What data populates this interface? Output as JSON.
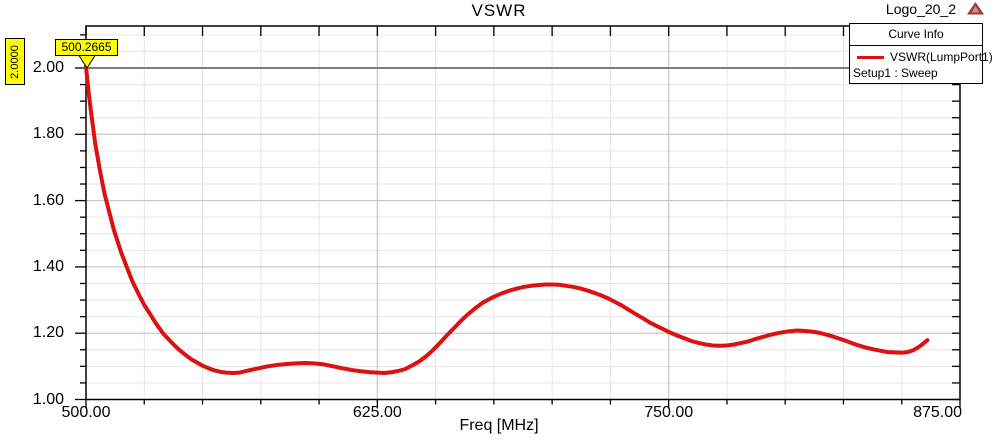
{
  "header": {
    "design_name": "Logo_20_2"
  },
  "colors": {
    "curve": "#dc1111",
    "marker_bg": "#ffff00",
    "grid_minor": "#e6e6e6",
    "grid_major": "#c2c2c2",
    "marker_line": "#7d7d7d",
    "axis": "#000000",
    "logo": "#9e3a3a",
    "logo_inner": "#cf8f8f"
  },
  "chart_data": {
    "type": "line",
    "title": "VSWR",
    "xlabel": "Freq [MHz]",
    "ylabel": "",
    "xlim": [
      500,
      875
    ],
    "ylim": [
      1.0,
      2.127
    ],
    "grid": true,
    "x_minor_step": 25,
    "y_minor_step": 0.05,
    "x_ticks": {
      "values": [
        500,
        625,
        750,
        875
      ],
      "labels": [
        "500.00",
        "625.00",
        "750.00",
        "875.00"
      ]
    },
    "y_ticks": {
      "values": [
        1.0,
        1.2,
        1.4,
        1.6,
        1.8,
        2.0
      ],
      "labels": [
        "1.00",
        "1.20",
        "1.40",
        "1.60",
        "1.80",
        "2.00"
      ]
    },
    "legend": {
      "title": "Curve Info",
      "series_label": "VSWR(LumpPort1)",
      "setup_label": "Setup1 : Sweep",
      "position": "top-right"
    },
    "markers": {
      "y_marker": {
        "label": "2.0000",
        "value": 2.0
      },
      "point_marker": {
        "label": "500.2665",
        "freq": 500.2665,
        "value": 2.0
      }
    },
    "series": [
      {
        "name": "VSWR(LumpPort1)",
        "color": "#dc1111",
        "points": [
          [
            500,
            2.005
          ],
          [
            501,
            1.935
          ],
          [
            502,
            1.875
          ],
          [
            504,
            1.77
          ],
          [
            506,
            1.69
          ],
          [
            508,
            1.62
          ],
          [
            510,
            1.565
          ],
          [
            512,
            1.51
          ],
          [
            515,
            1.445
          ],
          [
            518,
            1.39
          ],
          [
            520,
            1.355
          ],
          [
            523,
            1.312
          ],
          [
            525,
            1.285
          ],
          [
            528,
            1.252
          ],
          [
            530,
            1.23
          ],
          [
            533,
            1.2
          ],
          [
            535,
            1.185
          ],
          [
            538,
            1.163
          ],
          [
            540,
            1.15
          ],
          [
            543,
            1.133
          ],
          [
            545,
            1.122
          ],
          [
            548,
            1.11
          ],
          [
            550,
            1.102
          ],
          [
            553,
            1.093
          ],
          [
            555,
            1.088
          ],
          [
            558,
            1.083
          ],
          [
            560,
            1.081
          ],
          [
            563,
            1.08
          ],
          [
            566,
            1.081
          ],
          [
            570,
            1.088
          ],
          [
            574,
            1.094
          ],
          [
            578,
            1.1
          ],
          [
            582,
            1.104
          ],
          [
            586,
            1.107
          ],
          [
            590,
            1.109
          ],
          [
            594,
            1.11
          ],
          [
            598,
            1.109
          ],
          [
            602,
            1.106
          ],
          [
            606,
            1.1
          ],
          [
            610,
            1.094
          ],
          [
            614,
            1.089
          ],
          [
            618,
            1.085
          ],
          [
            622,
            1.082
          ],
          [
            625,
            1.081
          ],
          [
            628,
            1.08
          ],
          [
            631,
            1.082
          ],
          [
            634,
            1.086
          ],
          [
            637,
            1.092
          ],
          [
            640,
            1.103
          ],
          [
            643,
            1.115
          ],
          [
            646,
            1.131
          ],
          [
            649,
            1.15
          ],
          [
            652,
            1.172
          ],
          [
            655,
            1.195
          ],
          [
            658,
            1.216
          ],
          [
            661,
            1.238
          ],
          [
            664,
            1.258
          ],
          [
            667,
            1.275
          ],
          [
            670,
            1.291
          ],
          [
            673,
            1.303
          ],
          [
            676,
            1.313
          ],
          [
            679,
            1.322
          ],
          [
            682,
            1.329
          ],
          [
            685,
            1.335
          ],
          [
            688,
            1.34
          ],
          [
            691,
            1.343
          ],
          [
            694,
            1.345
          ],
          [
            697,
            1.347
          ],
          [
            700,
            1.347
          ],
          [
            703,
            1.346
          ],
          [
            706,
            1.343
          ],
          [
            709,
            1.34
          ],
          [
            712,
            1.335
          ],
          [
            715,
            1.329
          ],
          [
            718,
            1.322
          ],
          [
            721,
            1.314
          ],
          [
            724,
            1.305
          ],
          [
            727,
            1.294
          ],
          [
            730,
            1.283
          ],
          [
            733,
            1.27
          ],
          [
            736,
            1.257
          ],
          [
            739,
            1.245
          ],
          [
            742,
            1.232
          ],
          [
            745,
            1.221
          ],
          [
            748,
            1.211
          ],
          [
            751,
            1.201
          ],
          [
            754,
            1.192
          ],
          [
            757,
            1.184
          ],
          [
            760,
            1.176
          ],
          [
            763,
            1.17
          ],
          [
            766,
            1.166
          ],
          [
            769,
            1.163
          ],
          [
            772,
            1.162
          ],
          [
            775,
            1.163
          ],
          [
            778,
            1.166
          ],
          [
            781,
            1.17
          ],
          [
            784,
            1.175
          ],
          [
            787,
            1.182
          ],
          [
            790,
            1.188
          ],
          [
            793,
            1.194
          ],
          [
            796,
            1.199
          ],
          [
            799,
            1.203
          ],
          [
            802,
            1.206
          ],
          [
            805,
            1.208
          ],
          [
            808,
            1.207
          ],
          [
            811,
            1.205
          ],
          [
            814,
            1.202
          ],
          [
            817,
            1.197
          ],
          [
            820,
            1.191
          ],
          [
            823,
            1.184
          ],
          [
            826,
            1.177
          ],
          [
            829,
            1.169
          ],
          [
            832,
            1.162
          ],
          [
            835,
            1.156
          ],
          [
            838,
            1.151
          ],
          [
            841,
            1.147
          ],
          [
            844,
            1.143
          ],
          [
            847,
            1.142
          ],
          [
            850,
            1.141
          ],
          [
            853,
            1.144
          ],
          [
            855,
            1.149
          ],
          [
            857,
            1.157
          ],
          [
            859,
            1.167
          ],
          [
            861,
            1.179
          ]
        ]
      }
    ]
  }
}
